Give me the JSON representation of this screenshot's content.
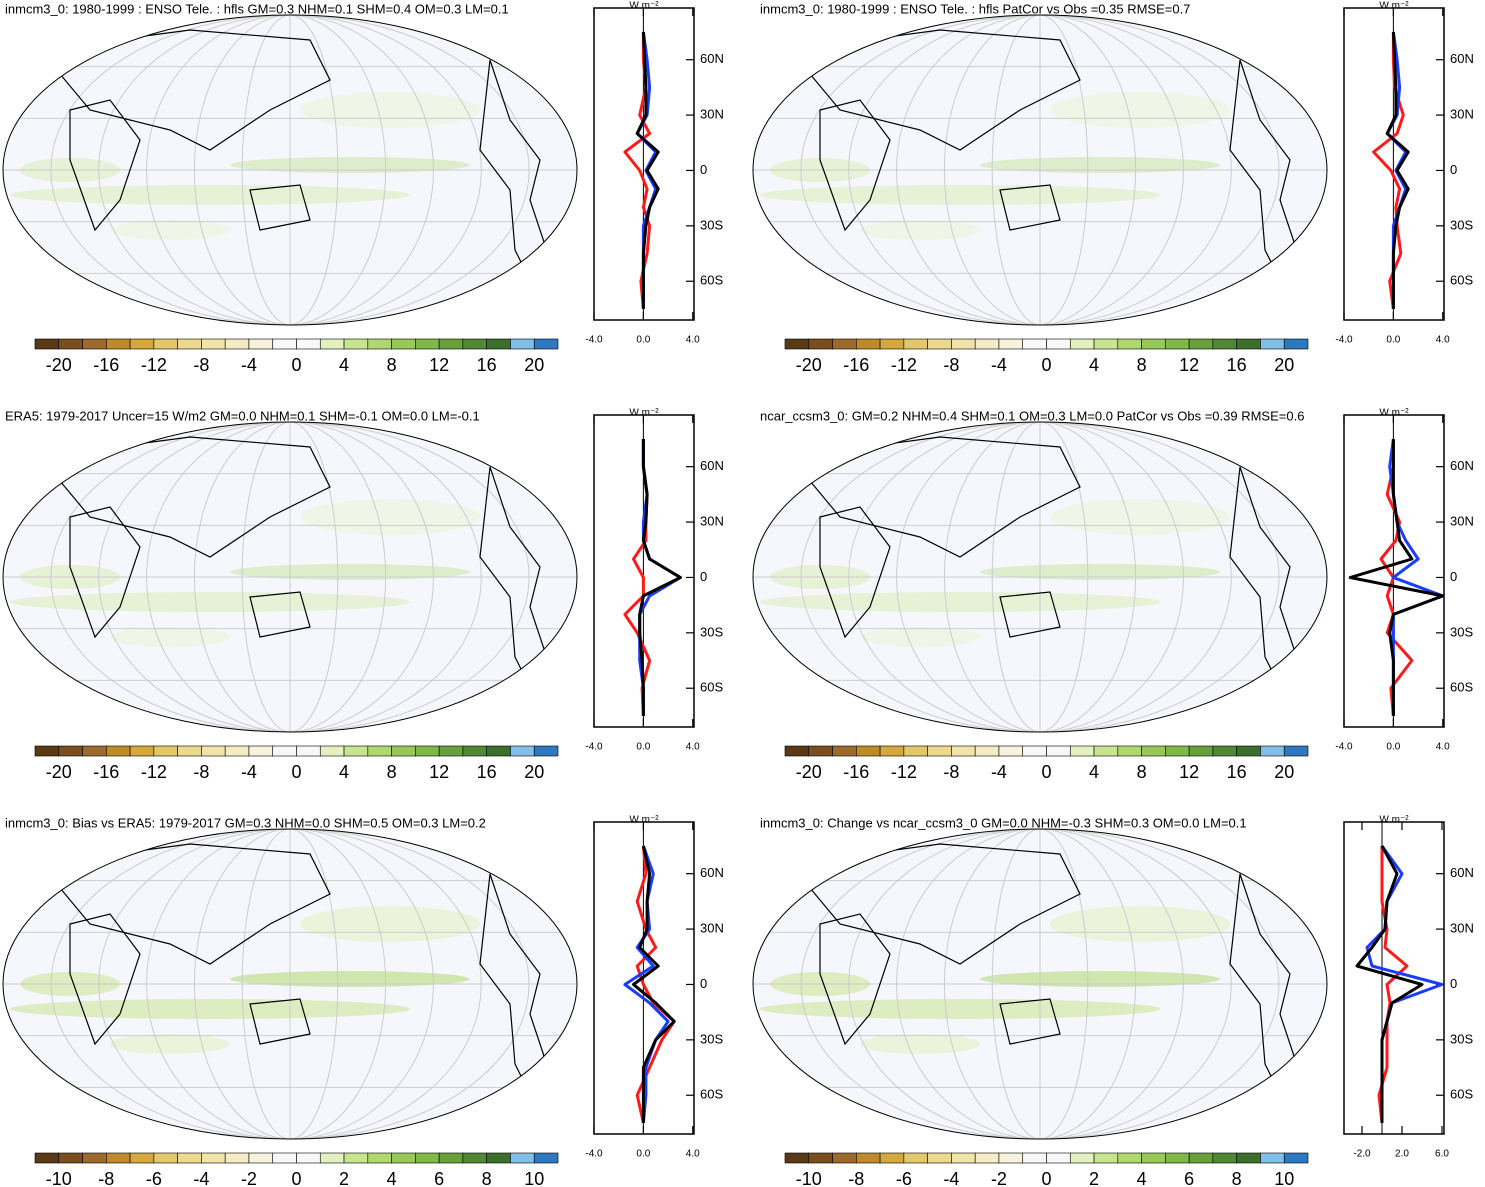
{
  "colorbar_colors": [
    "#5a3a14",
    "#7a4e1e",
    "#9b6a2c",
    "#c08a2a",
    "#d4a83c",
    "#e2c86a",
    "#ecd98e",
    "#f0e4a8",
    "#f4ecc4",
    "#f6f2dc",
    "#f8f8f8",
    "#f8f8f8",
    "#e4f0c0",
    "#c8e490",
    "#b0d870",
    "#98c858",
    "#80b848",
    "#68a03c",
    "#508834",
    "#3c6e2c",
    "#80c0e8",
    "#2e78c0"
  ],
  "panels": [
    {
      "title": "inmcm3_0: 1980-1999 : ENSO Tele. : hfls GM=0.3 NHM=0.1 SHM=0.4 OM=0.3 LM=0.1",
      "colorbar": {
        "lim": [
          -22,
          22
        ],
        "ticks": [
          -20,
          -16,
          -12,
          -8,
          -4,
          0,
          4,
          8,
          12,
          16,
          20
        ]
      },
      "profile": {
        "unit": "W m⁻²",
        "xlim": [
          -4,
          4.1
        ],
        "xticks": [
          {
            "value": -4,
            "label": "-4.0"
          },
          {
            "value": 0,
            "label": "0.0"
          },
          {
            "value": 4,
            "label": "4.0"
          }
        ],
        "ylim": [
          -81,
          88
        ],
        "yticks": [
          {
            "value": 60,
            "label": "60N"
          },
          {
            "value": 30,
            "label": "30N"
          },
          0,
          {
            "value": -30,
            "label": "30S"
          },
          {
            "value": -60,
            "label": "60S"
          }
        ],
        "lat": [
          -75,
          -60,
          -45,
          -30,
          -20,
          -10,
          0,
          10,
          20,
          30,
          45,
          60,
          75
        ],
        "series": [
          {
            "color": "#ff1a1a",
            "values": [
              0,
              -0.2,
              0.3,
              0.5,
              0,
              0.3,
              -0.3,
              -1.5,
              0.5,
              -0.3,
              0.2,
              0,
              0
            ]
          },
          {
            "color": "#1a3cff",
            "values": [
              0,
              0,
              0,
              0,
              0.5,
              1.0,
              0.2,
              1.0,
              -0.5,
              0.3,
              0.5,
              0.3,
              0
            ]
          },
          {
            "color": "#000000",
            "values": [
              0,
              0,
              0,
              0.2,
              0.5,
              1.2,
              0.3,
              1.2,
              -0.5,
              0.2,
              0.2,
              0.1,
              0
            ]
          }
        ]
      }
    },
    {
      "title": "inmcm3_0: 1980-1999 : ENSO Tele. : hfls PatCor vs Obs =0.35 RMSE=0.7",
      "colorbar": {
        "lim": [
          -22,
          22
        ],
        "ticks": [
          -20,
          -16,
          -12,
          -8,
          -4,
          0,
          4,
          8,
          12,
          16,
          20
        ]
      },
      "profile": {
        "unit": "W m⁻²",
        "xlim": [
          -4,
          4.1
        ],
        "xticks": [
          {
            "value": -4,
            "label": "-4.0"
          },
          {
            "value": 0,
            "label": "0.0"
          },
          {
            "value": 4,
            "label": "4.0"
          }
        ],
        "ylim": [
          -81,
          88
        ],
        "yticks": [
          {
            "value": 60,
            "label": "60N"
          },
          {
            "value": 30,
            "label": "30N"
          },
          0,
          {
            "value": -30,
            "label": "30S"
          },
          {
            "value": -60,
            "label": "60S"
          }
        ],
        "lat": [
          -75,
          -60,
          -45,
          -30,
          -20,
          -10,
          0,
          10,
          20,
          30,
          45,
          60,
          75
        ],
        "series": [
          {
            "color": "#ff1a1a",
            "values": [
              0,
              -0.3,
              0.6,
              0.3,
              0.2,
              0.5,
              -0.2,
              -1.6,
              0.3,
              0.8,
              0.1,
              0,
              0
            ]
          },
          {
            "color": "#1a3cff",
            "values": [
              0,
              0,
              0,
              0,
              0.5,
              1.0,
              0.2,
              1.0,
              -0.5,
              0.3,
              0.5,
              0.3,
              0
            ]
          },
          {
            "color": "#000000",
            "values": [
              0,
              0,
              0,
              0.2,
              0.5,
              1.2,
              0.3,
              1.2,
              -0.5,
              0.2,
              0.2,
              0.1,
              0
            ]
          }
        ]
      }
    },
    {
      "title": "ERA5: 1979-2017 Uncer=15 W/m2 GM=0.0 NHM=0.1 SHM=-0.1 OM=0.0 LM=-0.1",
      "colorbar": {
        "lim": [
          -22,
          22
        ],
        "ticks": [
          -20,
          -16,
          -12,
          -8,
          -4,
          0,
          4,
          8,
          12,
          16,
          20
        ]
      },
      "profile": {
        "unit": "W m⁻²",
        "xlim": [
          -4,
          4.1
        ],
        "xticks": [
          {
            "value": -4,
            "label": "-4.0"
          },
          {
            "value": 0,
            "label": "0.0"
          },
          {
            "value": 4,
            "label": "4.0"
          }
        ],
        "ylim": [
          -81,
          88
        ],
        "yticks": [
          {
            "value": 60,
            "label": "60N"
          },
          {
            "value": 30,
            "label": "30N"
          },
          0,
          {
            "value": -30,
            "label": "30S"
          },
          {
            "value": -60,
            "label": "60S"
          }
        ],
        "lat": [
          -75,
          -60,
          -45,
          -30,
          -20,
          -10,
          0,
          10,
          20,
          30,
          45,
          60,
          75
        ],
        "series": [
          {
            "color": "#ff1a1a",
            "values": [
              0,
              -0.1,
              0.5,
              -0.5,
              -1.5,
              0,
              0,
              -0.8,
              0.2,
              0.2,
              0.3,
              0,
              0
            ]
          },
          {
            "color": "#1a3cff",
            "values": [
              0,
              0,
              -0.3,
              -0.3,
              -0.3,
              0.5,
              3,
              0.5,
              0,
              0,
              0.3,
              0,
              0
            ]
          },
          {
            "color": "#000000",
            "values": [
              0,
              0,
              -0.1,
              -0.3,
              -0.3,
              0,
              3,
              0.5,
              0,
              0.2,
              0.3,
              0,
              0
            ]
          }
        ]
      }
    },
    {
      "title": "ncar_ccsm3_0: GM=0.2 NHM=0.4 SHM=0.1 OM=0.3 LM=0.0 PatCor vs Obs =0.39 RMSE=0.6",
      "colorbar": {
        "lim": [
          -22,
          22
        ],
        "ticks": [
          -20,
          -16,
          -12,
          -8,
          -4,
          0,
          4,
          8,
          12,
          16,
          20
        ]
      },
      "profile": {
        "unit": "W m⁻²",
        "xlim": [
          -4,
          4.1
        ],
        "xticks": [
          {
            "value": -4,
            "label": "-4.0"
          },
          {
            "value": 0,
            "label": "0.0"
          },
          {
            "value": 4,
            "label": "4.0"
          }
        ],
        "ylim": [
          -81,
          88
        ],
        "yticks": [
          {
            "value": 60,
            "label": "60N"
          },
          {
            "value": 30,
            "label": "30N"
          },
          0,
          {
            "value": -30,
            "label": "30S"
          },
          {
            "value": -60,
            "label": "60S"
          }
        ],
        "lat": [
          -75,
          -60,
          -45,
          -30,
          -20,
          -10,
          0,
          10,
          20,
          30,
          45,
          60,
          75
        ],
        "series": [
          {
            "color": "#ff1a1a",
            "values": [
              0,
              -0.2,
              1.5,
              -0.5,
              0,
              -0.5,
              0,
              -1,
              0.2,
              0.5,
              -0.5,
              0,
              0
            ]
          },
          {
            "color": "#1a3cff",
            "values": [
              0,
              0,
              0,
              0,
              0,
              4,
              0,
              2,
              1,
              0.3,
              0,
              -0.3,
              0
            ]
          },
          {
            "color": "#000000",
            "values": [
              0,
              0,
              0,
              -0.3,
              0,
              4,
              -3.5,
              1.5,
              0.5,
              0.3,
              0,
              0,
              0
            ]
          }
        ]
      }
    },
    {
      "title": "inmcm3_0: Bias vs ERA5: 1979-2017 GM=0.3 NHM=0.0 SHM=0.5 OM=0.3 LM=0.2",
      "colorbar": {
        "lim": [
          -11,
          11
        ],
        "ticks": [
          -10,
          -8,
          -6,
          -4,
          -2,
          0,
          2,
          4,
          6,
          8,
          10
        ]
      },
      "profile": {
        "unit": "W m⁻²",
        "xlim": [
          -4,
          4.1
        ],
        "xticks": [
          {
            "value": -4,
            "label": "-4.0"
          },
          {
            "value": 0,
            "label": "0.0"
          },
          {
            "value": 4,
            "label": "4.0"
          }
        ],
        "ylim": [
          -81,
          88
        ],
        "yticks": [
          {
            "value": 60,
            "label": "60N"
          },
          {
            "value": 30,
            "label": "30N"
          },
          0,
          {
            "value": -30,
            "label": "30S"
          },
          {
            "value": -60,
            "label": "60S"
          }
        ],
        "lat": [
          -75,
          -60,
          -45,
          -30,
          -20,
          -10,
          0,
          10,
          20,
          30,
          45,
          60,
          75
        ],
        "series": [
          {
            "color": "#ff1a1a",
            "values": [
              0,
              -0.5,
              0.5,
              1.5,
              2.5,
              0.8,
              0,
              -0.5,
              1.0,
              0.2,
              -0.5,
              0.2,
              0
            ]
          },
          {
            "color": "#1a3cff",
            "values": [
              0,
              0.2,
              0.2,
              1.0,
              2.0,
              0.5,
              -1.5,
              0.8,
              -0.5,
              0.5,
              0.3,
              0.8,
              0
            ]
          },
          {
            "color": "#000000",
            "values": [
              0,
              0,
              0,
              1.0,
              2.5,
              1.0,
              -0.8,
              1.2,
              -0.3,
              0.3,
              0.3,
              0.5,
              0
            ]
          }
        ]
      }
    },
    {
      "title": "inmcm3_0: Change vs ncar_ccsm3_0 GM=0.0 NHM=-0.3 SHM=0.3 OM=0.0 LM=0.1",
      "colorbar": {
        "lim": [
          -11,
          11
        ],
        "ticks": [
          -10,
          -8,
          -6,
          -4,
          -2,
          0,
          2,
          4,
          6,
          8,
          10
        ]
      },
      "profile": {
        "unit": "W m⁻²",
        "xlim": [
          -3.8,
          6.2
        ],
        "xticks": [
          {
            "value": -2,
            "label": "-2.0"
          },
          {
            "value": 2,
            "label": "2.0"
          },
          {
            "value": 6,
            "label": "6.0"
          }
        ],
        "ylim": [
          -81,
          88
        ],
        "yticks": [
          {
            "value": 60,
            "label": "60N"
          },
          {
            "value": 30,
            "label": "30N"
          },
          0,
          {
            "value": -30,
            "label": "30S"
          },
          {
            "value": -60,
            "label": "60S"
          }
        ],
        "lat": [
          -75,
          -60,
          -45,
          -30,
          -20,
          -10,
          0,
          10,
          20,
          30,
          45,
          60,
          75
        ],
        "series": [
          {
            "color": "#ff1a1a",
            "values": [
              0,
              -0.3,
              0.5,
              0.5,
              0.5,
              0.8,
              0.5,
              2.5,
              0.3,
              0.5,
              0,
              0,
              0
            ]
          },
          {
            "color": "#1a3cff",
            "values": [
              0,
              0,
              0,
              0,
              0.5,
              1,
              6,
              -1,
              -1.5,
              0.3,
              0.5,
              2,
              0
            ]
          },
          {
            "color": "#000000",
            "values": [
              0,
              0,
              0,
              0,
              0.5,
              1,
              4,
              -2.5,
              -1,
              0.3,
              0.5,
              1.5,
              0
            ]
          }
        ]
      }
    }
  ]
}
